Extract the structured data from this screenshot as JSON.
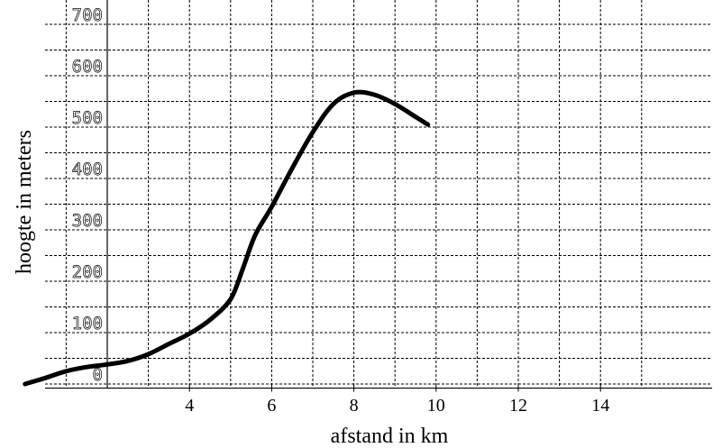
{
  "chart_data": {
    "type": "line",
    "xlabel": "afstand in km",
    "ylabel": "hoogte in meters",
    "xlim": [
      0,
      15
    ],
    "ylim": [
      -20,
      700
    ],
    "x_ticks": [
      4,
      6,
      8,
      10,
      12,
      14
    ],
    "y_ticks": [
      0,
      100,
      200,
      300,
      400,
      500,
      600,
      700
    ],
    "grid": true,
    "series": [
      {
        "x": [
          0,
          0.5,
          1,
          1.5,
          2,
          2.5,
          3,
          3.5,
          4,
          4.5,
          5,
          5.3,
          5.6,
          6,
          6.5,
          7,
          7.5,
          8,
          8.5,
          9,
          9.5,
          9.8
        ],
        "values": [
          0,
          12,
          25,
          33,
          38,
          45,
          58,
          78,
          98,
          125,
          165,
          225,
          290,
          345,
          420,
          490,
          545,
          567,
          563,
          545,
          520,
          505
        ]
      }
    ]
  }
}
